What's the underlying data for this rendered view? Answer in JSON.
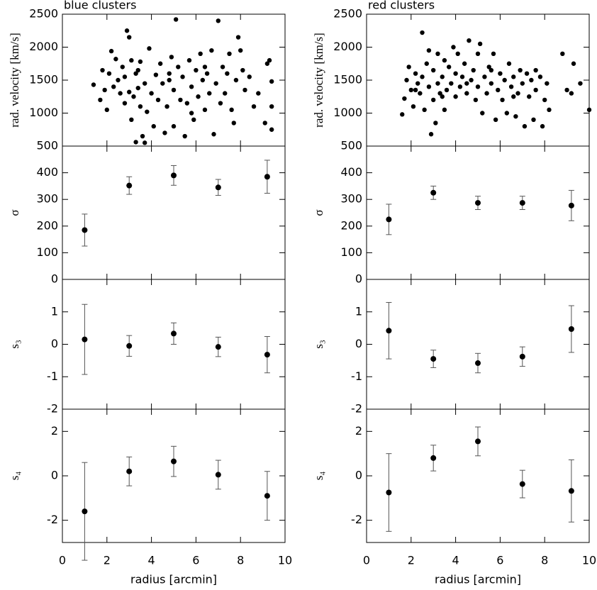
{
  "chart_data": [
    {
      "type": "scatter",
      "title": "blue clusters",
      "ylabel": "rad. velocity [km/s]",
      "color": "#000000",
      "xlim": [
        0,
        10
      ],
      "xticks": [
        0,
        2,
        4,
        6,
        8,
        10
      ],
      "ylim": [
        500,
        2500
      ],
      "yticks": [
        500,
        1000,
        1500,
        2000,
        2500
      ],
      "x": [
        1.4,
        1.7,
        1.8,
        1.9,
        2.0,
        2.1,
        2.2,
        2.3,
        2.4,
        2.5,
        2.6,
        2.7,
        2.8,
        2.9,
        3.0,
        3.0,
        3.1,
        3.1,
        3.2,
        3.3,
        3.3,
        3.4,
        3.5,
        3.5,
        3.6,
        3.7,
        3.7,
        3.8,
        3.9,
        4.0,
        4.1,
        4.2,
        4.3,
        4.4,
        4.5,
        4.6,
        4.7,
        4.8,
        4.9,
        5.0,
        5.0,
        5.1,
        5.2,
        5.3,
        5.4,
        5.5,
        5.6,
        5.7,
        5.8,
        5.9,
        6.0,
        6.1,
        6.2,
        6.3,
        6.4,
        6.5,
        6.6,
        6.7,
        6.8,
        6.9,
        7.0,
        7.1,
        7.2,
        7.3,
        7.4,
        7.5,
        7.6,
        7.7,
        7.8,
        7.9,
        8.0,
        8.1,
        8.2,
        8.4,
        8.6,
        8.8,
        9.1,
        9.2,
        9.3,
        9.4,
        9.4,
        9.4,
        4.8,
        5.8,
        6.4,
        2.8,
        3.4
      ],
      "values": [
        1430,
        1200,
        1650,
        1350,
        1050,
        1600,
        1940,
        1400,
        1820,
        1500,
        1300,
        1700,
        1550,
        2250,
        2150,
        1320,
        900,
        1800,
        1250,
        1600,
        560,
        1380,
        1780,
        1100,
        650,
        1450,
        550,
        1020,
        1980,
        1300,
        800,
        1580,
        1200,
        1750,
        1450,
        700,
        1100,
        1600,
        1850,
        1350,
        800,
        2420,
        1700,
        1200,
        1550,
        650,
        1150,
        1800,
        1400,
        900,
        1650,
        1250,
        1900,
        1500,
        1050,
        1600,
        1300,
        1950,
        680,
        1450,
        2400,
        1150,
        1700,
        1300,
        1600,
        1900,
        1050,
        850,
        1500,
        2150,
        1950,
        1650,
        1350,
        1550,
        1100,
        1300,
        850,
        1750,
        1800,
        1100,
        750,
        1480,
        1500,
        1000,
        1700,
        1150,
        1650
      ]
    },
    {
      "type": "errorbar",
      "ylabel": "σ",
      "color": "#000000",
      "xlim": [
        0,
        10
      ],
      "xticks": [
        0,
        2,
        4,
        6,
        8,
        10
      ],
      "ylim": [
        0,
        500
      ],
      "yticks": [
        0,
        100,
        200,
        300,
        400
      ],
      "x": [
        1,
        3,
        5,
        7,
        9.2
      ],
      "values": [
        185,
        352,
        390,
        345,
        385
      ],
      "errors": [
        60,
        33,
        37,
        30,
        62
      ]
    },
    {
      "type": "errorbar",
      "ylabel": "s₃",
      "color": "#000000",
      "xlim": [
        0,
        10
      ],
      "xticks": [
        0,
        2,
        4,
        6,
        8,
        10
      ],
      "ylim": [
        -2,
        2
      ],
      "yticks": [
        -2,
        -1,
        0,
        1
      ],
      "x": [
        1,
        3,
        5,
        7,
        9.2
      ],
      "values": [
        0.15,
        -0.05,
        0.33,
        -0.08,
        -0.32
      ],
      "errors": [
        1.08,
        0.32,
        0.33,
        0.3,
        0.56
      ]
    },
    {
      "type": "errorbar",
      "ylabel": "s₄",
      "xlabel": "radius [arcmin]",
      "color": "#000000",
      "xlim": [
        0,
        10
      ],
      "xticks": [
        0,
        2,
        4,
        6,
        8,
        10
      ],
      "ylim": [
        -3,
        3
      ],
      "yticks": [
        -2,
        0,
        2
      ],
      "x": [
        1,
        3,
        5,
        7,
        9.2
      ],
      "values": [
        -1.6,
        0.2,
        0.65,
        0.05,
        -0.9
      ],
      "errors": [
        2.2,
        0.65,
        0.68,
        0.65,
        1.1
      ]
    },
    {
      "type": "scatter",
      "title": "red clusters",
      "ylabel": "rad. velocity [km/s]",
      "color": "#000000",
      "xlim": [
        0,
        10
      ],
      "xticks": [
        0,
        2,
        4,
        6,
        8,
        10
      ],
      "ylim": [
        500,
        2500
      ],
      "yticks": [
        500,
        1000,
        1500,
        2000,
        2500
      ],
      "x": [
        1.6,
        1.7,
        1.8,
        1.9,
        2.0,
        2.1,
        2.2,
        2.3,
        2.4,
        2.5,
        2.5,
        2.6,
        2.7,
        2.8,
        2.8,
        2.9,
        3.0,
        3.0,
        3.1,
        3.2,
        3.2,
        3.3,
        3.4,
        3.5,
        3.5,
        3.6,
        3.7,
        3.8,
        3.9,
        4.0,
        4.0,
        4.1,
        4.2,
        4.3,
        4.4,
        4.5,
        4.6,
        4.7,
        4.8,
        4.9,
        5.0,
        5.0,
        5.1,
        5.2,
        5.3,
        5.4,
        5.5,
        5.6,
        5.7,
        5.8,
        5.9,
        6.0,
        6.1,
        6.2,
        6.3,
        6.4,
        6.5,
        6.6,
        6.7,
        6.8,
        6.9,
        7.0,
        7.1,
        7.2,
        7.3,
        7.4,
        7.5,
        7.6,
        7.8,
        7.9,
        8.0,
        8.1,
        8.2,
        8.8,
        9.0,
        9.2,
        9.3,
        9.6,
        10.0,
        2.2,
        3.4,
        4.5,
        5.6,
        6.6,
        7.6
      ],
      "values": [
        980,
        1220,
        1500,
        1700,
        1350,
        1100,
        1600,
        1450,
        1300,
        2220,
        1550,
        1050,
        1750,
        1400,
        1950,
        680,
        1200,
        1650,
        850,
        1900,
        1450,
        1300,
        1550,
        1050,
        1800,
        1350,
        1700,
        1450,
        2000,
        1250,
        1600,
        1900,
        1400,
        1550,
        1750,
        1300,
        2100,
        1500,
        1650,
        1200,
        1900,
        1400,
        2050,
        1000,
        1550,
        1300,
        1700,
        1450,
        1900,
        900,
        1350,
        1600,
        1200,
        1500,
        1000,
        1750,
        1400,
        1550,
        950,
        1300,
        1650,
        1450,
        800,
        1600,
        1250,
        1500,
        900,
        1350,
        1550,
        800,
        1200,
        1450,
        1050,
        1900,
        1350,
        1300,
        1750,
        1450,
        1050,
        1350,
        1250,
        1450,
        1650,
        1250,
        1650
      ]
    },
    {
      "type": "errorbar",
      "ylabel": "σ",
      "color": "#000000",
      "xlim": [
        0,
        10
      ],
      "xticks": [
        0,
        2,
        4,
        6,
        8,
        10
      ],
      "ylim": [
        0,
        500
      ],
      "yticks": [
        0,
        100,
        200,
        300,
        400
      ],
      "x": [
        1,
        3,
        5,
        7,
        9.2
      ],
      "values": [
        225,
        325,
        287,
        287,
        277
      ],
      "errors": [
        57,
        25,
        25,
        25,
        57
      ]
    },
    {
      "type": "errorbar",
      "ylabel": "s₃",
      "color": "#000000",
      "xlim": [
        0,
        10
      ],
      "xticks": [
        0,
        2,
        4,
        6,
        8,
        10
      ],
      "ylim": [
        -2,
        2
      ],
      "yticks": [
        -2,
        -1,
        0,
        1
      ],
      "x": [
        1,
        3,
        5,
        7,
        9.2
      ],
      "values": [
        0.42,
        -0.45,
        -0.58,
        -0.38,
        0.47
      ],
      "errors": [
        0.87,
        0.27,
        0.3,
        0.3,
        0.72
      ]
    },
    {
      "type": "errorbar",
      "ylabel": "s₄",
      "xlabel": "radius [arcmin]",
      "color": "#000000",
      "xlim": [
        0,
        10
      ],
      "xticks": [
        0,
        2,
        4,
        6,
        8,
        10
      ],
      "ylim": [
        -3,
        3
      ],
      "yticks": [
        -2,
        0,
        2
      ],
      "x": [
        1,
        3,
        5,
        7,
        9.2
      ],
      "values": [
        -0.75,
        0.8,
        1.55,
        -0.37,
        -0.68
      ],
      "errors": [
        1.75,
        0.58,
        0.65,
        0.62,
        1.4
      ]
    }
  ]
}
